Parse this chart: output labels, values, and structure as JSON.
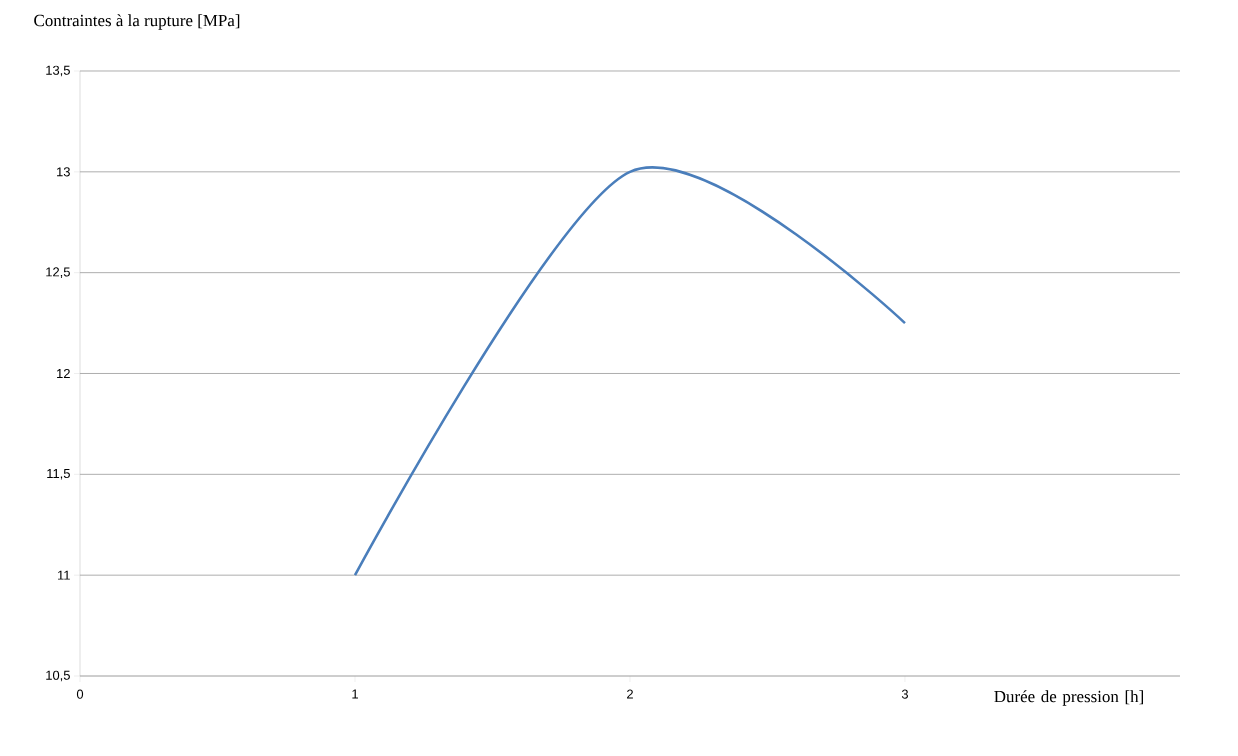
{
  "chart_data": {
    "type": "line",
    "xlabel": "Durée de pression [h]",
    "ylabel": "Contraintes à la rupture [MPa]",
    "x": [
      1,
      2,
      3
    ],
    "series": [
      {
        "color": "#4a7ebb",
        "values": [
          11,
          13,
          12.25
        ]
      }
    ],
    "xlim": [
      0,
      4
    ],
    "xticks": [
      0,
      1,
      2,
      3
    ],
    "ylim": [
      10.5,
      13.5
    ],
    "yticks": [
      {
        "value": 10.5,
        "label": "10,5"
      },
      {
        "value": 11,
        "label": "11"
      },
      {
        "value": 11.5,
        "label": "11,5"
      },
      {
        "value": 12,
        "label": "12"
      },
      {
        "value": 12.5,
        "label": "12,5"
      },
      {
        "value": 13,
        "label": "13"
      },
      {
        "value": 13.5,
        "label": "13,5"
      }
    ],
    "grid": "y",
    "marker": "none",
    "line_style": "solid"
  }
}
